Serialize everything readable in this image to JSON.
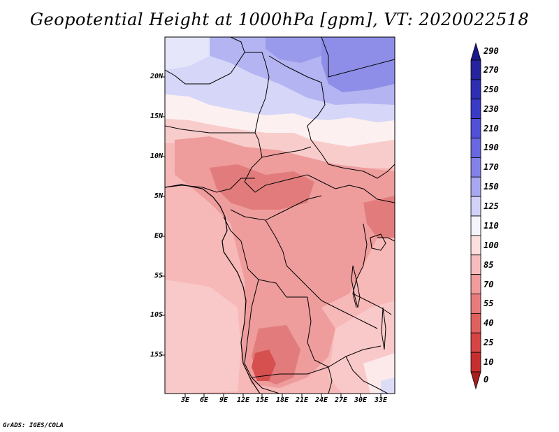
{
  "title": "Geopotential Height at 1000hPa [gpm], VT: 2020022518",
  "footer": "GrADS: IGES/COLA",
  "map": {
    "lat_labels": [
      "20N",
      "15N",
      "10N",
      "5N",
      "EQ",
      "5S",
      "10S",
      "15S"
    ],
    "lon_labels": [
      "3E",
      "6E",
      "9E",
      "12E",
      "15E",
      "18E",
      "21E",
      "24E",
      "27E",
      "30E",
      "33E"
    ]
  },
  "colorbar": {
    "labels": [
      "290",
      "270",
      "250",
      "230",
      "210",
      "190",
      "170",
      "150",
      "125",
      "110",
      "100",
      "85",
      "70",
      "55",
      "40",
      "25",
      "10",
      "0"
    ],
    "colors": [
      "#1a1a8c",
      "#24249e",
      "#2e2eb4",
      "#3a3ac8",
      "#5050d8",
      "#6868e0",
      "#8282e8",
      "#a8a8f0",
      "#d2d2f8",
      "#f4f4fc",
      "#fcdede",
      "#f7bcbc",
      "#f19c9c",
      "#e87c7c",
      "#e06060",
      "#d84444",
      "#c82e2e",
      "#a81e1e"
    ]
  }
}
